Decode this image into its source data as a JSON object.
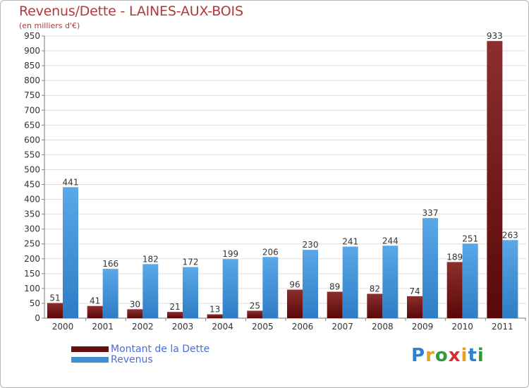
{
  "title": "Revenus/Dette - LAINES-AUX-BOIS",
  "subtitle": "(en milliers d'€)",
  "colors": {
    "title": "#b03a3a",
    "dette_top": "#8c2e2e",
    "dette_bottom": "#5a0808",
    "revenus_top": "#5aa8e8",
    "revenus_bottom": "#2e7cc4",
    "legend_text": "#4a6fd6",
    "grid": "#dddddd",
    "axis_text": "#333333"
  },
  "chart_data": {
    "type": "bar",
    "title": "Revenus/Dette - LAINES-AUX-BOIS",
    "ylabel": "(en milliers d'€)",
    "xlabel": "",
    "ylim": [
      0,
      950
    ],
    "y_ticks": [
      0,
      50,
      100,
      150,
      200,
      250,
      300,
      350,
      400,
      450,
      500,
      550,
      600,
      650,
      700,
      750,
      800,
      850,
      900,
      950
    ],
    "grid": true,
    "categories": [
      "2000",
      "2001",
      "2002",
      "2003",
      "2004",
      "2005",
      "2006",
      "2007",
      "2008",
      "2009",
      "2010",
      "2011"
    ],
    "series": [
      {
        "name": "Montant de la Dette",
        "values": [
          51,
          41,
          30,
          21,
          13,
          25,
          96,
          89,
          82,
          74,
          189,
          933
        ]
      },
      {
        "name": "Revenus",
        "values": [
          441,
          166,
          182,
          172,
          199,
          206,
          230,
          241,
          244,
          337,
          251,
          263
        ]
      }
    ],
    "legend_position": "bottom-left"
  },
  "legend": [
    {
      "label": "Montant de la Dette",
      "color": "#6a0f0f"
    },
    {
      "label": "Revenus",
      "color": "#3d8fd6"
    }
  ],
  "logo": {
    "letters": [
      "P",
      "r",
      "o",
      "x",
      "i",
      "t",
      "i"
    ],
    "colors": [
      "#2f7fd0",
      "#e8a020",
      "#2f9a3a",
      "#d43030",
      "#e8a020",
      "#2f7fd0",
      "#2f9a3a"
    ]
  }
}
